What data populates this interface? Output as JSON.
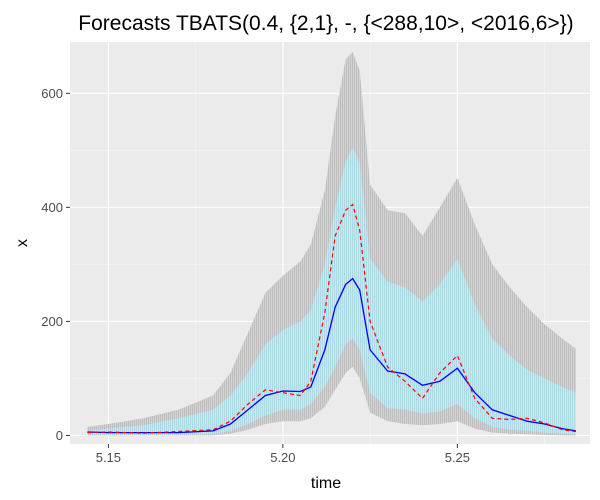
{
  "chart_data": {
    "type": "area",
    "title": "Forecasts TBATS(0.4, {2,1}, -, {<288,10>, <2016,6>})",
    "xlabel": "time",
    "ylabel": "x",
    "xlim": [
      5.139,
      5.288
    ],
    "ylim": [
      -15,
      690
    ],
    "x_ticks": [
      5.15,
      5.2,
      5.25
    ],
    "x_tick_labels": [
      "5.15",
      "5.20",
      "5.25"
    ],
    "y_ticks": [
      0,
      200,
      400,
      600
    ],
    "y_tick_labels": [
      "0",
      "200",
      "400",
      "600"
    ],
    "grid": true,
    "legend": "none",
    "colors": {
      "panel": "#ebebeb",
      "grid_major": "#ffffff",
      "grid_minor": "#f5f5f5",
      "pi95": "#bebebe",
      "pi80": "#add8e6",
      "forecast": "#0000ff",
      "actual": "#ff0000"
    },
    "x": [
      5.144,
      5.15,
      5.16,
      5.17,
      5.18,
      5.185,
      5.19,
      5.195,
      5.2,
      5.205,
      5.208,
      5.212,
      5.215,
      5.218,
      5.22,
      5.222,
      5.225,
      5.23,
      5.235,
      5.24,
      5.245,
      5.25,
      5.255,
      5.26,
      5.265,
      5.27,
      5.275,
      5.28,
      5.284
    ],
    "series": [
      {
        "key": "upper95",
        "values": [
          15,
          20,
          30,
          45,
          70,
          110,
          180,
          250,
          280,
          305,
          335,
          430,
          560,
          660,
          672,
          640,
          440,
          395,
          390,
          350,
          400,
          452,
          370,
          300,
          260,
          225,
          195,
          170,
          152
        ]
      },
      {
        "key": "upper80",
        "values": [
          8,
          12,
          18,
          30,
          45,
          70,
          110,
          160,
          185,
          200,
          220,
          300,
          400,
          480,
          505,
          480,
          310,
          270,
          260,
          235,
          265,
          310,
          230,
          170,
          140,
          115,
          100,
          85,
          75
        ]
      },
      {
        "key": "forecast",
        "values": [
          6,
          5,
          5,
          5,
          8,
          20,
          45,
          70,
          78,
          77,
          85,
          150,
          225,
          265,
          275,
          255,
          150,
          113,
          108,
          88,
          95,
          118,
          75,
          45,
          35,
          25,
          20,
          12,
          8
        ]
      },
      {
        "key": "lower80",
        "values": [
          2,
          1,
          1,
          1,
          2,
          8,
          20,
          35,
          45,
          45,
          55,
          85,
          120,
          160,
          170,
          150,
          75,
          48,
          45,
          38,
          42,
          55,
          30,
          15,
          10,
          8,
          5,
          3,
          2
        ]
      },
      {
        "key": "lower95",
        "values": [
          0,
          0,
          0,
          0,
          0,
          3,
          10,
          20,
          25,
          25,
          30,
          50,
          80,
          110,
          120,
          100,
          40,
          25,
          20,
          18,
          20,
          25,
          12,
          5,
          3,
          2,
          1,
          0,
          0
        ]
      },
      {
        "key": "actual",
        "values": [
          5,
          6,
          4,
          7,
          10,
          25,
          55,
          80,
          75,
          70,
          95,
          215,
          350,
          395,
          405,
          360,
          200,
          120,
          95,
          65,
          110,
          140,
          65,
          30,
          28,
          30,
          22,
          10,
          7
        ]
      }
    ]
  }
}
